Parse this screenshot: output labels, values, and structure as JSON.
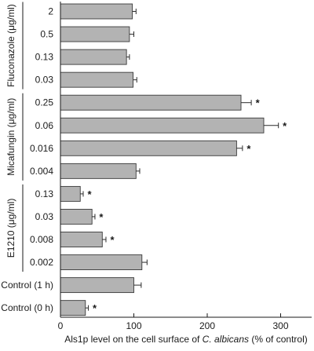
{
  "chart_data": {
    "type": "bar",
    "orientation": "horizontal",
    "categories": [
      "2",
      "0.5",
      "0.13",
      "0.03",
      "0.25",
      "0.06",
      "0.016",
      "0.004",
      "0.13",
      "0.03",
      "0.008",
      "0.002",
      "Control (1 h)",
      "Control (0 h)"
    ],
    "values": [
      98,
      94,
      90,
      99,
      246,
      277,
      240,
      103,
      27,
      43,
      57,
      111,
      100,
      34
    ],
    "errors": [
      5,
      6,
      4,
      5,
      14,
      20,
      8,
      5,
      4,
      4,
      5,
      7,
      10,
      4
    ],
    "significant": [
      false,
      false,
      false,
      false,
      true,
      true,
      true,
      false,
      true,
      true,
      true,
      false,
      false,
      true
    ],
    "significance_marker": "*",
    "groups": [
      {
        "label": "Fluconazole (μg/ml)",
        "start": 0,
        "end": 3
      },
      {
        "label": "Micafungin (μg/ml)",
        "start": 4,
        "end": 7
      },
      {
        "label": "E1210 (μg/ml)",
        "start": 8,
        "end": 11
      }
    ],
    "xlabel_parts": [
      {
        "text": "Als1p level on the cell surface of ",
        "italic": false
      },
      {
        "text": "C. albicans",
        "italic": true
      },
      {
        "text": " (% of control)",
        "italic": false
      }
    ],
    "xlim": [
      0,
      350
    ],
    "xticks": [
      0,
      100,
      200,
      300
    ],
    "grid": false
  }
}
